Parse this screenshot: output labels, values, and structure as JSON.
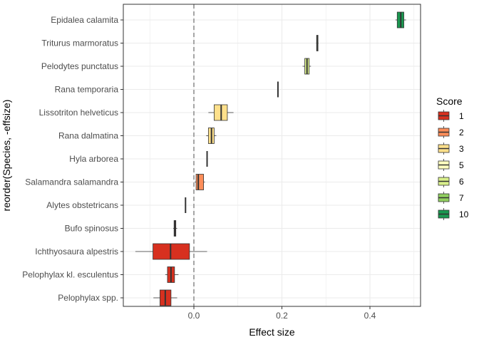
{
  "chart_data": {
    "type": "boxplot",
    "xlabel": "Effect size",
    "ylabel": "reorder(Species, -effsize)",
    "xlim": [
      -0.16,
      0.52
    ],
    "x_ticks": [
      0.0,
      0.2,
      0.4
    ],
    "x_tick_labels": [
      "0.0",
      "0.2",
      "0.4"
    ],
    "reference_line": {
      "x": 0.0,
      "style": "dashed",
      "color": "#a6a6a6"
    },
    "grid": true,
    "legend": {
      "title": "Score",
      "position": "right",
      "items": [
        {
          "label": "1",
          "color": "#d7301f"
        },
        {
          "label": "2",
          "color": "#fc8d59"
        },
        {
          "label": "3",
          "color": "#fee08b"
        },
        {
          "label": "5",
          "color": "#ffffbf"
        },
        {
          "label": "6",
          "color": "#d9ef8b"
        },
        {
          "label": "7",
          "color": "#91cf60"
        },
        {
          "label": "10",
          "color": "#1a9850"
        }
      ]
    },
    "species": [
      {
        "name": "Epidalea calamita",
        "score": "10",
        "min": 0.458,
        "q1": 0.462,
        "median": 0.47,
        "q3": 0.477,
        "max": 0.482
      },
      {
        "name": "Triturus marmoratus",
        "score": "6",
        "min": 0.278,
        "q1": 0.279,
        "median": 0.28,
        "q3": 0.282,
        "max": 0.283
      },
      {
        "name": "Pelodytes punctatus",
        "score": "6",
        "min": 0.247,
        "q1": 0.252,
        "median": 0.257,
        "q3": 0.262,
        "max": 0.266
      },
      {
        "name": "Rana temporaria",
        "score": "6",
        "min": 0.191,
        "q1": 0.191,
        "median": 0.191,
        "q3": 0.191,
        "max": 0.191
      },
      {
        "name": "Lissotriton helveticus",
        "score": "3",
        "min": 0.033,
        "q1": 0.046,
        "median": 0.062,
        "q3": 0.076,
        "max": 0.09
      },
      {
        "name": "Rana dalmatina",
        "score": "3",
        "min": 0.028,
        "q1": 0.033,
        "median": 0.04,
        "q3": 0.046,
        "max": 0.051
      },
      {
        "name": "Hyla arborea",
        "score": "3",
        "min": 0.03,
        "q1": 0.03,
        "median": 0.03,
        "q3": 0.03,
        "max": 0.03
      },
      {
        "name": "Salamandra salamandra",
        "score": "2",
        "min": 0.002,
        "q1": 0.005,
        "median": 0.01,
        "q3": 0.022,
        "max": 0.025
      },
      {
        "name": "Alytes obstetricans",
        "score": "1",
        "min": -0.019,
        "q1": -0.019,
        "median": -0.019,
        "q3": -0.019,
        "max": -0.019
      },
      {
        "name": "Bufo spinosus",
        "score": "1",
        "min": -0.047,
        "q1": -0.045,
        "median": -0.043,
        "q3": -0.041,
        "max": -0.038
      },
      {
        "name": "Ichthyosaura alpestris",
        "score": "1",
        "min": -0.133,
        "q1": -0.093,
        "median": -0.053,
        "q3": -0.01,
        "max": 0.03
      },
      {
        "name": "Pelophylax kl. esculentus",
        "score": "1",
        "min": -0.065,
        "q1": -0.06,
        "median": -0.052,
        "q3": -0.044,
        "max": -0.035
      },
      {
        "name": "Pelophylax spp.",
        "score": "1",
        "min": -0.092,
        "q1": -0.077,
        "median": -0.065,
        "q3": -0.052,
        "max": -0.038
      }
    ]
  }
}
